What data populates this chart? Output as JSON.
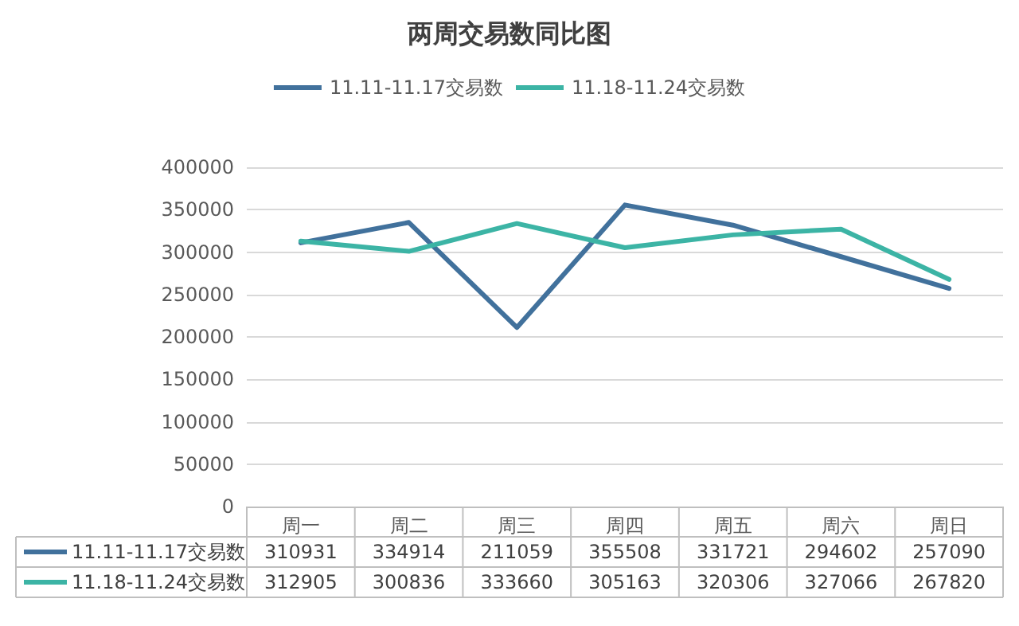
{
  "chart_data": {
    "type": "line",
    "title": "两周交易数同比图",
    "categories": [
      "周一",
      "周二",
      "周三",
      "周四",
      "周五",
      "周六",
      "周日"
    ],
    "series": [
      {
        "name": "11.11-11.17交易数",
        "color": "#41719c",
        "values": [
          310931,
          334914,
          211059,
          355508,
          331721,
          294602,
          257090
        ]
      },
      {
        "name": "11.18-11.24交易数",
        "color": "#3cb4a5",
        "values": [
          312905,
          300836,
          333660,
          305163,
          320306,
          327066,
          267820
        ]
      }
    ],
    "ylim": [
      0,
      400000
    ],
    "yticks": [
      0,
      50000,
      100000,
      150000,
      200000,
      250000,
      300000,
      350000,
      400000
    ],
    "grid": "y",
    "legend": "top",
    "marker": "none",
    "line_style": "solid",
    "data_labels": true
  }
}
